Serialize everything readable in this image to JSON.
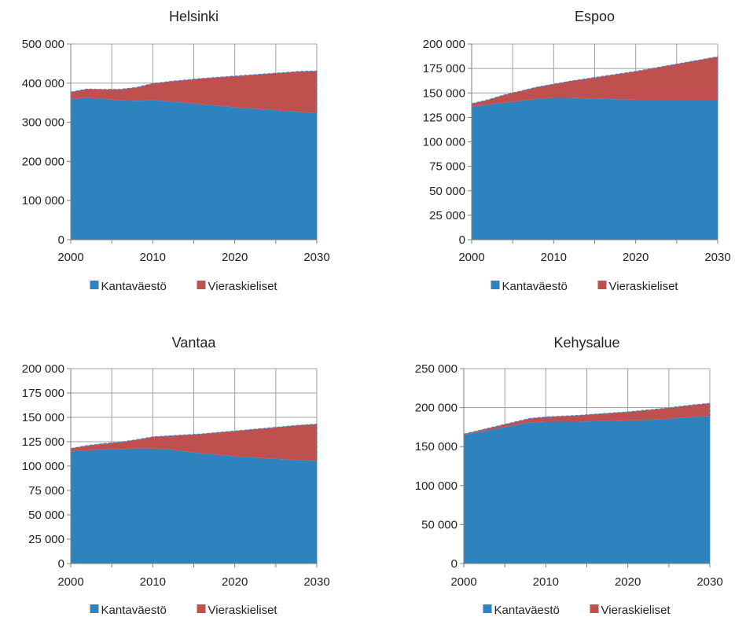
{
  "colors": {
    "base": "#2E83BE",
    "foreign": "#C0504D",
    "grid": "#A0A0A0",
    "outline": "#4F81BD"
  },
  "chart_data": [
    {
      "type": "area",
      "title": "Helsinki",
      "x": [
        2000,
        2002,
        2004,
        2006,
        2008,
        2010,
        2012,
        2014,
        2016,
        2018,
        2020,
        2022,
        2024,
        2026,
        2028,
        2030
      ],
      "x_ticks": [
        2000,
        2010,
        2020,
        2030
      ],
      "x_tick_labels": [
        "2000",
        "2010",
        "2020",
        "2030"
      ],
      "xlim": [
        2000,
        2030
      ],
      "ylim": [
        0,
        500000
      ],
      "y_ticks": [
        0,
        100000,
        200000,
        300000,
        400000,
        500000
      ],
      "y_tick_labels": [
        "0",
        "100 000",
        "200 000",
        "300 000",
        "400 000",
        "500 000"
      ],
      "stacked": true,
      "grid": true,
      "legend_position": "bottom",
      "series": [
        {
          "name": "Kantaväestö",
          "values": [
            360000,
            363000,
            360000,
            356000,
            355000,
            356000,
            354000,
            350000,
            346000,
            342000,
            338000,
            335000,
            332000,
            329000,
            326000,
            324000
          ]
        },
        {
          "name": "Vieraskieliset",
          "values": [
            17000,
            22000,
            24000,
            28000,
            34000,
            43000,
            50000,
            58000,
            66000,
            73000,
            80000,
            86000,
            92000,
            98000,
            104000,
            107000
          ]
        }
      ]
    },
    {
      "type": "area",
      "title": "Espoo",
      "x": [
        2000,
        2002,
        2004,
        2006,
        2008,
        2010,
        2012,
        2014,
        2016,
        2018,
        2020,
        2022,
        2024,
        2026,
        2028,
        2030
      ],
      "x_ticks": [
        2000,
        2010,
        2020,
        2030
      ],
      "x_tick_labels": [
        "2000",
        "2010",
        "2020",
        "2030"
      ],
      "xlim": [
        2000,
        2030
      ],
      "ylim": [
        0,
        200000
      ],
      "y_ticks": [
        0,
        25000,
        50000,
        75000,
        100000,
        125000,
        150000,
        175000,
        200000
      ],
      "y_tick_labels": [
        "0",
        "25 000",
        "50 000",
        "75 000",
        "100 000",
        "125 000",
        "150 000",
        "175 000",
        "200 000"
      ],
      "stacked": true,
      "grid": true,
      "legend_position": "bottom",
      "series": [
        {
          "name": "Kantaväestö",
          "values": [
            136000,
            138000,
            140000,
            142000,
            144000,
            145000,
            145000,
            144500,
            144000,
            143500,
            143000,
            143000,
            143000,
            143000,
            143000,
            143000
          ]
        },
        {
          "name": "Vieraskieliset",
          "values": [
            3000,
            5000,
            8000,
            10000,
            12000,
            14000,
            17000,
            20000,
            23000,
            26000,
            29000,
            32000,
            35000,
            38000,
            41000,
            44000
          ]
        }
      ]
    },
    {
      "type": "area",
      "title": "Vantaa",
      "x": [
        2000,
        2002,
        2004,
        2006,
        2008,
        2010,
        2012,
        2014,
        2016,
        2018,
        2020,
        2022,
        2024,
        2026,
        2028,
        2030
      ],
      "x_ticks": [
        2000,
        2010,
        2020,
        2030
      ],
      "x_tick_labels": [
        "2000",
        "2010",
        "2020",
        "2030"
      ],
      "xlim": [
        2000,
        2030
      ],
      "ylim": [
        0,
        200000
      ],
      "y_ticks": [
        0,
        25000,
        50000,
        75000,
        100000,
        125000,
        150000,
        175000,
        200000
      ],
      "y_tick_labels": [
        "0",
        "25 000",
        "50 000",
        "75 000",
        "100 000",
        "125 000",
        "150 000",
        "175 000",
        "200 000"
      ],
      "stacked": true,
      "grid": true,
      "legend_position": "bottom",
      "series": [
        {
          "name": "Kantaväestö",
          "values": [
            115000,
            116000,
            117000,
            117500,
            118000,
            118000,
            117000,
            115000,
            113000,
            111500,
            110000,
            109000,
            108000,
            107000,
            106000,
            105000
          ]
        },
        {
          "name": "Vieraskieliset",
          "values": [
            3000,
            5000,
            6000,
            7000,
            9000,
            12000,
            14000,
            17000,
            20000,
            23000,
            26000,
            28500,
            31000,
            33500,
            36000,
            38000
          ]
        }
      ]
    },
    {
      "type": "area",
      "title": "Kehysalue",
      "x": [
        2000,
        2002,
        2004,
        2006,
        2008,
        2010,
        2012,
        2014,
        2016,
        2018,
        2020,
        2022,
        2024,
        2026,
        2028,
        2030
      ],
      "x_ticks": [
        2000,
        2010,
        2020,
        2030
      ],
      "x_tick_labels": [
        "2000",
        "2010",
        "2020",
        "2030"
      ],
      "xlim": [
        2000,
        2030
      ],
      "ylim": [
        0,
        250000
      ],
      "y_ticks": [
        0,
        50000,
        100000,
        150000,
        200000,
        250000
      ],
      "y_tick_labels": [
        "0",
        "50 000",
        "100 000",
        "150 000",
        "200 000",
        "250 000"
      ],
      "stacked": true,
      "grid": true,
      "legend_position": "bottom",
      "series": [
        {
          "name": "Kantaväestö",
          "values": [
            165000,
            169000,
            173000,
            177000,
            181000,
            182000,
            182000,
            182000,
            182500,
            183000,
            183500,
            184000,
            185000,
            186500,
            188000,
            189000
          ]
        },
        {
          "name": "Vieraskieliset",
          "values": [
            1000,
            2000,
            3000,
            4000,
            5000,
            6000,
            7000,
            8000,
            9000,
            10000,
            11000,
            12500,
            13500,
            14500,
            15500,
            16500
          ]
        }
      ]
    }
  ]
}
